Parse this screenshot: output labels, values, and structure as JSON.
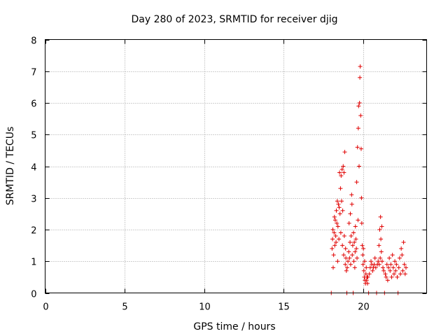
{
  "chart_data": {
    "type": "scatter",
    "title": "Day 280 of 2023, SRMTID for receiver djig",
    "xlabel": "GPS time / hours",
    "ylabel": "SRMTID / TECUs",
    "xlim": [
      0,
      24
    ],
    "ylim": [
      0,
      8
    ],
    "x_ticks": [
      "0",
      "5",
      "10",
      "15",
      "20"
    ],
    "x_tick_values": [
      0,
      5,
      10,
      15,
      20
    ],
    "y_ticks": [
      "0",
      "1",
      "2",
      "3",
      "4",
      "5",
      "6",
      "7",
      "8"
    ],
    "y_tick_values": [
      0,
      1,
      2,
      3,
      4,
      5,
      6,
      7,
      8
    ],
    "grid": true,
    "marker": "+",
    "series": [
      {
        "name": "SRMTID",
        "color": "#e00000",
        "points": [
          [
            18.0,
            0.0
          ],
          [
            18.05,
            1.4
          ],
          [
            18.08,
            1.7
          ],
          [
            18.1,
            2.0
          ],
          [
            18.12,
            0.8
          ],
          [
            18.15,
            1.2
          ],
          [
            18.18,
            1.9
          ],
          [
            18.2,
            2.4
          ],
          [
            18.22,
            1.5
          ],
          [
            18.25,
            2.3
          ],
          [
            18.28,
            1.8
          ],
          [
            18.3,
            1.6
          ],
          [
            18.32,
            2.6
          ],
          [
            18.35,
            2.2
          ],
          [
            18.38,
            2.9
          ],
          [
            18.4,
            1.0
          ],
          [
            18.42,
            2.1
          ],
          [
            18.45,
            2.8
          ],
          [
            18.48,
            1.7
          ],
          [
            18.5,
            2.7
          ],
          [
            18.52,
            3.8
          ],
          [
            18.55,
            2.5
          ],
          [
            18.58,
            3.3
          ],
          [
            18.6,
            1.9
          ],
          [
            18.62,
            3.7
          ],
          [
            18.65,
            2.9
          ],
          [
            18.68,
            3.9
          ],
          [
            18.7,
            1.5
          ],
          [
            18.72,
            2.6
          ],
          [
            18.75,
            4.0
          ],
          [
            18.78,
            1.2
          ],
          [
            18.8,
            3.8
          ],
          [
            18.82,
            1.8
          ],
          [
            18.85,
            4.45
          ],
          [
            18.88,
            0.9
          ],
          [
            18.9,
            1.4
          ],
          [
            18.92,
            1.1
          ],
          [
            18.95,
            0.7
          ],
          [
            18.98,
            0.0
          ],
          [
            19.0,
            0.8
          ],
          [
            19.05,
            1.0
          ],
          [
            19.1,
            1.3
          ],
          [
            19.12,
            2.2
          ],
          [
            19.15,
            1.1
          ],
          [
            19.18,
            1.6
          ],
          [
            19.2,
            2.5
          ],
          [
            19.22,
            0.9
          ],
          [
            19.25,
            1.8
          ],
          [
            19.28,
            3.1
          ],
          [
            19.3,
            2.8
          ],
          [
            19.32,
            1.2
          ],
          [
            19.35,
            1.5
          ],
          [
            19.38,
            0.0
          ],
          [
            19.4,
            1.9
          ],
          [
            19.42,
            1.0
          ],
          [
            19.45,
            1.6
          ],
          [
            19.48,
            0.8
          ],
          [
            19.5,
            1.3
          ],
          [
            19.52,
            2.1
          ],
          [
            19.55,
            1.7
          ],
          [
            19.58,
            1.4
          ],
          [
            19.6,
            3.5
          ],
          [
            19.62,
            1.1
          ],
          [
            19.65,
            4.6
          ],
          [
            19.68,
            2.3
          ],
          [
            19.7,
            5.2
          ],
          [
            19.72,
            5.9
          ],
          [
            19.75,
            4.0
          ],
          [
            19.78,
            6.0
          ],
          [
            19.8,
            6.8
          ],
          [
            19.82,
            7.15
          ],
          [
            19.85,
            5.6
          ],
          [
            19.88,
            4.55
          ],
          [
            19.9,
            3.0
          ],
          [
            19.92,
            2.2
          ],
          [
            19.95,
            1.5
          ],
          [
            19.98,
            1.2
          ],
          [
            20.0,
            0.9
          ],
          [
            20.02,
            1.4
          ],
          [
            20.05,
            0.7
          ],
          [
            20.08,
            0.5
          ],
          [
            20.1,
            1.0
          ],
          [
            20.12,
            0.4
          ],
          [
            20.15,
            0.3
          ],
          [
            20.18,
            0.6
          ],
          [
            20.2,
            0.8
          ],
          [
            20.22,
            0.4
          ],
          [
            20.25,
            0.5
          ],
          [
            20.28,
            0.3
          ],
          [
            20.3,
            0.5
          ],
          [
            20.35,
            0.0
          ],
          [
            20.4,
            0.6
          ],
          [
            20.45,
            0.8
          ],
          [
            20.5,
            1.0
          ],
          [
            20.55,
            0.9
          ],
          [
            20.6,
            0.7
          ],
          [
            20.65,
            0.8
          ],
          [
            20.7,
            0.9
          ],
          [
            20.75,
            1.1
          ],
          [
            20.8,
            0.8
          ],
          [
            20.85,
            0.0
          ],
          [
            20.9,
            0.9
          ],
          [
            20.95,
            1.0
          ],
          [
            21.0,
            1.5
          ],
          [
            21.02,
            0.9
          ],
          [
            21.05,
            2.0
          ],
          [
            21.08,
            1.1
          ],
          [
            21.1,
            2.4
          ],
          [
            21.12,
            1.7
          ],
          [
            21.15,
            1.3
          ],
          [
            21.18,
            2.1
          ],
          [
            21.2,
            1.0
          ],
          [
            21.25,
            0.8
          ],
          [
            21.3,
            0.7
          ],
          [
            21.35,
            0.0
          ],
          [
            21.4,
            0.6
          ],
          [
            21.45,
            0.5
          ],
          [
            21.5,
            0.9
          ],
          [
            21.55,
            0.4
          ],
          [
            21.6,
            0.8
          ],
          [
            21.65,
            1.1
          ],
          [
            21.7,
            0.7
          ],
          [
            21.75,
            0.9
          ],
          [
            21.8,
            0.5
          ],
          [
            21.85,
            1.2
          ],
          [
            21.9,
            0.8
          ],
          [
            21.95,
            0.6
          ],
          [
            22.0,
            1.0
          ],
          [
            22.05,
            0.7
          ],
          [
            22.1,
            0.9
          ],
          [
            22.15,
            0.5
          ],
          [
            22.2,
            0.0
          ],
          [
            22.25,
            0.8
          ],
          [
            22.3,
            1.1
          ],
          [
            22.35,
            0.6
          ],
          [
            22.4,
            1.4
          ],
          [
            22.45,
            1.2
          ],
          [
            22.5,
            0.7
          ],
          [
            22.55,
            1.6
          ],
          [
            22.6,
            0.9
          ],
          [
            22.65,
            0.6
          ],
          [
            22.7,
            0.8
          ]
        ]
      }
    ]
  }
}
